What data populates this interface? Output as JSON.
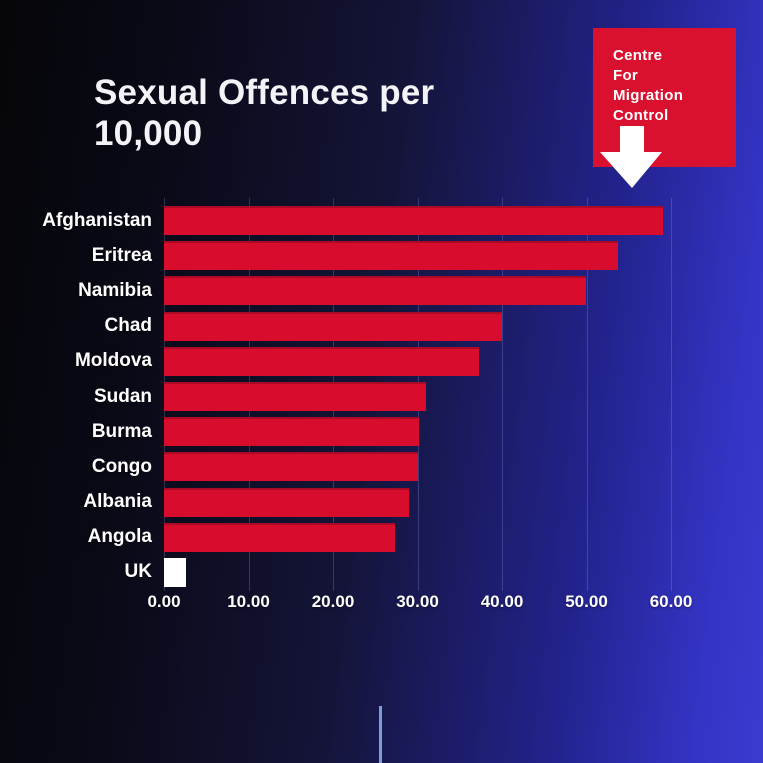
{
  "title": "Sexual Offences per 10,000",
  "logo": {
    "lines": [
      "Centre",
      "For",
      "Migration",
      "Control"
    ],
    "bg_color": "#d9112f",
    "arrow_color": "#ffffff"
  },
  "chart_data": {
    "type": "bar",
    "orientation": "horizontal",
    "title": "Sexual Offences per 10,000",
    "categories": [
      "Afghanistan",
      "Eritrea",
      "Namibia",
      "Chad",
      "Moldova",
      "Sudan",
      "Burma",
      "Congo",
      "Albania",
      "Angola",
      "UK"
    ],
    "values": [
      59.0,
      53.7,
      49.9,
      40.0,
      37.3,
      31.0,
      30.2,
      30.0,
      29.0,
      27.3,
      2.6
    ],
    "x_ticks": [
      "0.00",
      "10.00",
      "20.00",
      "30.00",
      "40.00",
      "50.00",
      "60.00"
    ],
    "xlim": [
      0,
      60
    ],
    "xlabel": "",
    "ylabel": "",
    "grid": "vertical-faint",
    "legend": "none",
    "bar_color_default": "#d80d2e",
    "bar_color_highlight_category": "UK",
    "bar_color_highlight": "#ffffff"
  },
  "colors": {
    "background_left": "#050509",
    "background_right": "#3b3bd0",
    "text": "#ffffff",
    "accent_red": "#d9112f",
    "gridline": "rgba(150,170,255,0.25)",
    "bottom_line": "#76a0d9"
  }
}
